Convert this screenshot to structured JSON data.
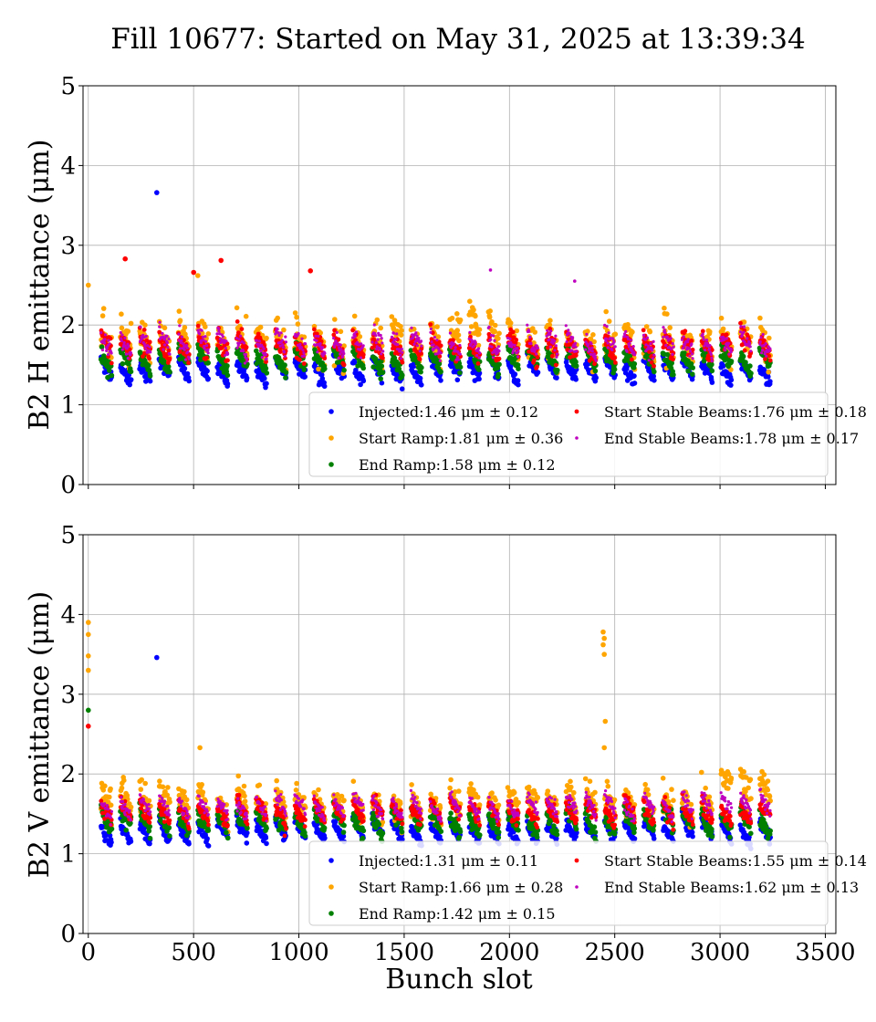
{
  "figure": {
    "title": "Fill 10677: Started on May 31, 2025 at 13:39:34"
  },
  "chart_data": [
    {
      "type": "scatter",
      "title": "",
      "xlabel": "",
      "ylabel": "B2 H emittance (μm)",
      "xlim": [
        -25,
        3550
      ],
      "ylim": [
        0,
        5
      ],
      "xticks": [
        0,
        500,
        1000,
        1500,
        2000,
        2500,
        3000,
        3500
      ],
      "yticks": [
        0,
        1,
        2,
        3,
        4,
        5
      ],
      "grid": true,
      "legend_position": "lower-right",
      "series": [
        {
          "name": "Injected:1.46 μm ± 0.12",
          "color": "#0000ff",
          "mean": 1.46,
          "std": 0.12
        },
        {
          "name": "Start Ramp:1.81 μm ± 0.36",
          "color": "#ffa500",
          "mean": 1.81,
          "std": 0.36
        },
        {
          "name": "End Ramp:1.58 μm ± 0.12",
          "color": "#008000",
          "mean": 1.58,
          "std": 0.12
        },
        {
          "name": "Start Stable Beams:1.76 μm ± 0.18",
          "color": "#ff0000",
          "mean": 1.76,
          "std": 0.18
        },
        {
          "name": "End Stable Beams:1.78 μm ± 0.17",
          "color": "#bf00bf",
          "mean": 1.78,
          "std": 0.17
        }
      ],
      "outliers": [
        {
          "series": 0,
          "x": 325,
          "y": 3.66
        },
        {
          "series": 3,
          "x": 175,
          "y": 2.83
        },
        {
          "series": 3,
          "x": 630,
          "y": 2.81
        },
        {
          "series": 3,
          "x": 500,
          "y": 2.66
        },
        {
          "series": 1,
          "x": 520,
          "y": 2.62
        },
        {
          "series": 3,
          "x": 1055,
          "y": 2.68
        },
        {
          "series": 4,
          "x": 1910,
          "y": 2.69
        },
        {
          "series": 4,
          "x": 2310,
          "y": 2.55
        },
        {
          "series": 1,
          "x": 0,
          "y": 2.5
        }
      ]
    },
    {
      "type": "scatter",
      "title": "",
      "xlabel": "Bunch slot",
      "ylabel": "B2 V emittance (μm)",
      "xlim": [
        -25,
        3550
      ],
      "ylim": [
        0,
        5
      ],
      "xticks": [
        0,
        500,
        1000,
        1500,
        2000,
        2500,
        3000,
        3500
      ],
      "yticks": [
        0,
        1,
        2,
        3,
        4,
        5
      ],
      "grid": true,
      "legend_position": "lower-right",
      "series": [
        {
          "name": "Injected:1.31 μm ± 0.11",
          "color": "#0000ff",
          "mean": 1.31,
          "std": 0.11
        },
        {
          "name": "Start Ramp:1.66 μm ± 0.28",
          "color": "#ffa500",
          "mean": 1.66,
          "std": 0.28
        },
        {
          "name": "End Ramp:1.42 μm ± 0.15",
          "color": "#008000",
          "mean": 1.42,
          "std": 0.15
        },
        {
          "name": "Start Stable Beams:1.55 μm ± 0.14",
          "color": "#ff0000",
          "mean": 1.55,
          "std": 0.14
        },
        {
          "name": "End Stable Beams:1.62 μm ± 0.13",
          "color": "#bf00bf",
          "mean": 1.62,
          "std": 0.13
        }
      ],
      "outliers": [
        {
          "series": 0,
          "x": 325,
          "y": 3.46
        },
        {
          "series": 1,
          "x": 0,
          "y": 3.9
        },
        {
          "series": 1,
          "x": 0,
          "y": 3.75
        },
        {
          "series": 1,
          "x": 0,
          "y": 3.48
        },
        {
          "series": 1,
          "x": 0,
          "y": 3.3
        },
        {
          "series": 2,
          "x": 0,
          "y": 2.8
        },
        {
          "series": 3,
          "x": 0,
          "y": 2.6
        },
        {
          "series": 1,
          "x": 2445,
          "y": 3.78
        },
        {
          "series": 1,
          "x": 2450,
          "y": 3.7
        },
        {
          "series": 1,
          "x": 2445,
          "y": 3.62
        },
        {
          "series": 1,
          "x": 2450,
          "y": 3.5
        },
        {
          "series": 1,
          "x": 2455,
          "y": 2.66
        },
        {
          "series": 1,
          "x": 2450,
          "y": 2.33
        },
        {
          "series": 1,
          "x": 530,
          "y": 2.33
        }
      ]
    }
  ]
}
